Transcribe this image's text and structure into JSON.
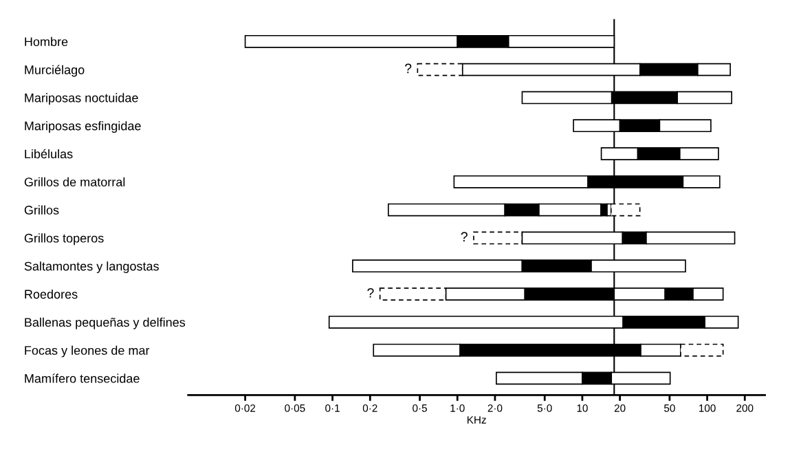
{
  "chart_data": {
    "type": "bar",
    "orientation": "horizontal",
    "xlabel": "KHz",
    "categories": [
      "Hombre",
      "Murciélago",
      "Mariposas noctuidae",
      "Mariposas esfingidae",
      "Libélulas",
      "Grillos de matorral",
      "Grillos",
      "Grillos toperos",
      "Saltamontes y langostas",
      "Roedores",
      "Ballenas pequeñas y delfines",
      "Focas y leones de mar",
      "Mamífero tensecidae"
    ],
    "series": [
      {
        "color": "#ffffff",
        "line_style": "dashed",
        "base": [
          null,
          0.48,
          null,
          null,
          null,
          null,
          null,
          1.35,
          null,
          0.24,
          null,
          null,
          null
        ],
        "values": [
          null,
          0.62,
          null,
          null,
          null,
          null,
          null,
          1.95,
          null,
          0.57,
          null,
          null,
          null
        ]
      },
      {
        "color": "#ffffff",
        "base": [
          0.02,
          1.1,
          3.3,
          8.5,
          14.2,
          0.94,
          0.28,
          3.3,
          0.145,
          0.81,
          0.094,
          0.213,
          2.05
        ],
        "values": [
          0.98,
          27.9,
          13.9,
          11.5,
          13.6,
          10.16,
          2.12,
          17.7,
          3.155,
          2.66,
          21.106,
          0.837,
          7.95
        ]
      },
      {
        "color": "#000000",
        "base": [
          1,
          29,
          17.2,
          20,
          27.8,
          11.1,
          2.4,
          21,
          3.3,
          3.47,
          21.2,
          1.05,
          10
        ],
        "values": [
          1.57,
          55,
          40.5,
          21.6,
          32.6,
          52.9,
          2.1,
          11.5,
          8.5,
          14.53,
          74.5,
          28.35,
          7.1
        ]
      },
      {
        "color": "#ffffff",
        "base": [
          2.57,
          84,
          57.7,
          41.6,
          60.4,
          64,
          4.5,
          32.5,
          11.8,
          18,
          95.7,
          29.4,
          17.1
        ],
        "values": [
          15.43,
          69,
          99.3,
          65.4,
          62.6,
          62,
          9.6,
          133.5,
          55.2,
          28,
          81.3,
          31.9,
          33.4
        ]
      },
      {
        "color": "#000000",
        "base": [
          null,
          null,
          null,
          null,
          null,
          null,
          14.1,
          null,
          null,
          46,
          null,
          null,
          null
        ],
        "values": [
          null,
          null,
          null,
          null,
          null,
          null,
          1.7,
          null,
          null,
          31,
          null,
          null,
          null
        ]
      },
      {
        "color": "#ffffff",
        "base": [
          null,
          null,
          null,
          null,
          null,
          null,
          15.8,
          null,
          null,
          77,
          null,
          null,
          null
        ],
        "values": [
          null,
          null,
          null,
          null,
          null,
          null,
          1.2,
          null,
          null,
          57,
          null,
          null,
          null
        ]
      },
      {
        "color": "#ffffff",
        "line_style": "dashed",
        "base": [
          null,
          null,
          null,
          null,
          null,
          null,
          17,
          null,
          null,
          null,
          null,
          61.3,
          null
        ],
        "values": [
          null,
          null,
          null,
          null,
          null,
          null,
          11.9,
          null,
          null,
          null,
          null,
          72.7,
          null
        ]
      }
    ],
    "log": "x",
    "xlim": [
      0.007,
      290
    ],
    "xticks": [
      {
        "value": 0.02,
        "label": "0·02"
      },
      {
        "value": 0.05,
        "label": "0·05"
      },
      {
        "value": 0.1,
        "label": "0·1"
      },
      {
        "value": 0.2,
        "label": "0·2"
      },
      {
        "value": 0.5,
        "label": "0·5"
      },
      {
        "value": 1,
        "label": "1·0"
      },
      {
        "value": 2,
        "label": "2·0"
      },
      {
        "value": 5,
        "label": "5·0"
      },
      10,
      20,
      50,
      100,
      200
    ],
    "ref_lines": [
      {
        "axis": "x",
        "value": 18,
        "color": "#000000"
      }
    ],
    "annotations": [
      {
        "text": "?",
        "x": 0.48,
        "y": "Murciélago"
      },
      {
        "text": "?",
        "x": 1.35,
        "y": "Grillos toperos"
      },
      {
        "text": "?",
        "x": 0.24,
        "y": "Roedores"
      }
    ]
  }
}
